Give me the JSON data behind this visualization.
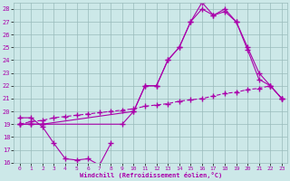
{
  "xlabel": "Windchill (Refroidissement éolien,°C)",
  "bg_color": "#cce8e8",
  "line_color": "#aa00aa",
  "grid_color": "#99bbbb",
  "xlim": [
    -0.5,
    23.5
  ],
  "ylim": [
    16,
    28.5
  ],
  "xticks": [
    0,
    1,
    2,
    3,
    4,
    5,
    6,
    7,
    8,
    9,
    10,
    11,
    12,
    13,
    14,
    15,
    16,
    17,
    18,
    19,
    20,
    21,
    22,
    23
  ],
  "yticks": [
    16,
    17,
    18,
    19,
    20,
    21,
    22,
    23,
    24,
    25,
    26,
    27,
    28
  ],
  "curve_up_x": [
    0,
    1,
    2,
    10,
    11,
    12,
    13,
    14,
    15,
    16,
    17,
    18,
    19,
    20,
    21,
    22,
    23
  ],
  "curve_up_y": [
    19,
    19,
    19,
    20,
    22,
    22,
    24,
    25,
    27,
    28,
    27.5,
    28,
    27,
    25,
    23,
    22,
    21
  ],
  "curve_spike_x": [
    0,
    1,
    2,
    9,
    10,
    11,
    12,
    13,
    14,
    15,
    16,
    17,
    18,
    19,
    20,
    21,
    22,
    23
  ],
  "curve_spike_y": [
    19,
    19,
    19,
    19,
    20,
    22,
    22,
    24,
    25,
    27,
    28.5,
    27.5,
    27.8,
    27,
    24.8,
    22.5,
    22,
    21
  ],
  "curve_low_x": [
    0,
    1,
    2,
    3,
    4,
    5,
    6,
    7,
    8
  ],
  "curve_low_y": [
    19.5,
    19.5,
    18.8,
    17.5,
    16.3,
    16.2,
    16.3,
    15.8,
    17.5
  ],
  "curve_diag_x": [
    0,
    1,
    2,
    3,
    4,
    5,
    6,
    7,
    8,
    9,
    10,
    11,
    12,
    13,
    14,
    15,
    16,
    17,
    18,
    19,
    20,
    21,
    22,
    23
  ],
  "curve_diag_y": [
    19.0,
    19.2,
    19.3,
    19.5,
    19.6,
    19.7,
    19.8,
    19.9,
    20.0,
    20.1,
    20.2,
    20.4,
    20.5,
    20.6,
    20.8,
    20.9,
    21.0,
    21.2,
    21.4,
    21.5,
    21.7,
    21.8,
    22.0,
    21.0
  ]
}
